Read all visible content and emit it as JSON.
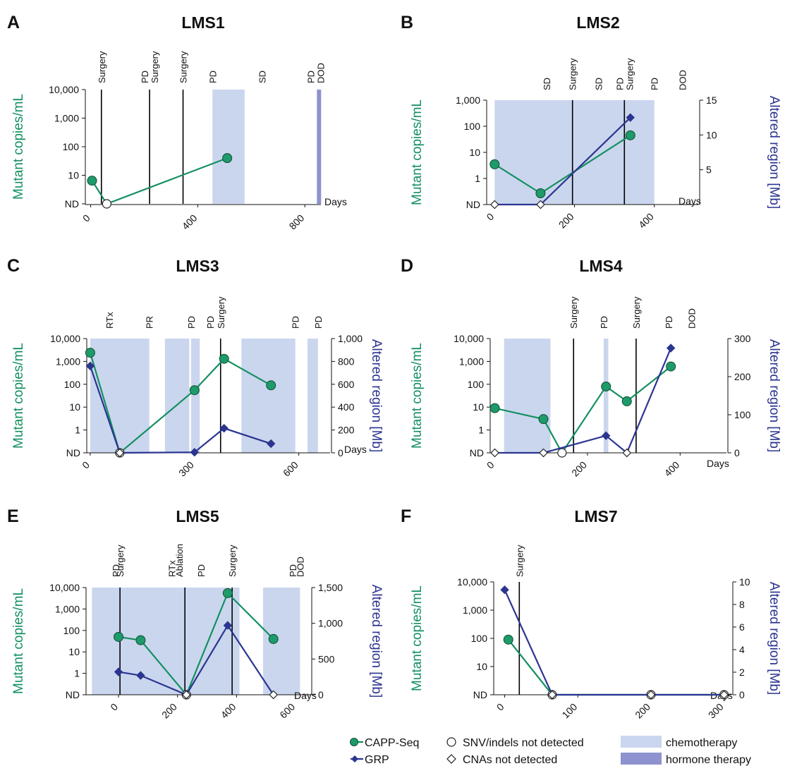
{
  "colors": {
    "capp": "#149060",
    "capp_fill": "#1f9a6a",
    "grp": "#2b3590",
    "chemo": "#cad6ee",
    "hormone": "#8e92cf",
    "axis": "#111111"
  },
  "legend": {
    "capp": "CAPP-Seq",
    "grp": "GRP",
    "snv": "SNV/indels not detected",
    "cna": "CNAs not detected",
    "chemo": "chemotherapy",
    "hormone": "hormone therapy"
  },
  "chart_data": [
    {
      "letter": "A",
      "title": "LMS1",
      "type": "line",
      "xlabel": "Days",
      "ylabel": "Mutant copies/mL",
      "y2label": "",
      "xlim": [
        -20,
        860
      ],
      "xticks": [
        0,
        400,
        800
      ],
      "yticks": [
        "ND",
        "10",
        "100",
        "1,000",
        "10,000"
      ],
      "y2lim": null,
      "y2ticks": [],
      "chemo": [
        [
          455,
          575
        ]
      ],
      "hormone": [
        [
          845,
          860
        ]
      ],
      "events": [
        {
          "day": 40,
          "labels": [
            "Surgery"
          ]
        },
        {
          "day": 220,
          "labels": [
            "PD",
            "Surgery"
          ]
        },
        {
          "day": 345,
          "labels": [
            "Surgery"
          ]
        },
        {
          "day": 455,
          "labels": [
            "PD"
          ]
        },
        {
          "day": 640,
          "labels": [
            "SD"
          ]
        },
        {
          "day": 840,
          "labels": [
            "PD",
            "DOD"
          ]
        }
      ],
      "lines": [
        {
          "day": 40
        },
        {
          "day": 220
        },
        {
          "day": 345
        }
      ],
      "series": [
        {
          "key": "capp",
          "name": "CAPP-Seq",
          "points": [
            {
              "day": 5,
              "value": 6.5,
              "detected": true
            },
            {
              "day": 60,
              "value": 0,
              "detected": false
            },
            {
              "day": 510,
              "value": 40,
              "detected": true
            }
          ]
        }
      ]
    },
    {
      "letter": "B",
      "title": "LMS2",
      "type": "line",
      "xlabel": "Days",
      "ylabel": "Mutant copies/mL",
      "y2label": "Altered region [Mb]",
      "xlim": [
        -20,
        510
      ],
      "xticks": [
        0,
        200,
        400
      ],
      "yticks": [
        "ND",
        "1",
        "10",
        "100",
        "1,000"
      ],
      "y2lim": [
        0,
        15
      ],
      "y2ticks": [
        5,
        10,
        15
      ],
      "chemo": [
        [
          0,
          400
        ]
      ],
      "hormone": [],
      "events": [
        {
          "day": 130,
          "labels": [
            "SD"
          ]
        },
        {
          "day": 195,
          "labels": [
            "Surgery"
          ]
        },
        {
          "day": 260,
          "labels": [
            "SD"
          ]
        },
        {
          "day": 325,
          "labels": [
            "PD",
            "Surgery"
          ]
        },
        {
          "day": 400,
          "labels": [
            "PD"
          ]
        },
        {
          "day": 470,
          "labels": [
            "DOD"
          ]
        }
      ],
      "lines": [
        {
          "day": 195
        },
        {
          "day": 325
        }
      ],
      "series": [
        {
          "key": "capp",
          "name": "CAPP-Seq",
          "points": [
            {
              "day": 0,
              "value": 3.5,
              "detected": true
            },
            {
              "day": 115,
              "value": 0.27,
              "detected": true
            },
            {
              "day": 340,
              "value": 45,
              "detected": true
            }
          ]
        },
        {
          "key": "grp",
          "name": "GRP",
          "points": [
            {
              "day": 0,
              "value": 0,
              "detected": false
            },
            {
              "day": 115,
              "value": 0,
              "detected": false
            },
            {
              "day": 340,
              "value": 12.5,
              "detected": true
            }
          ]
        }
      ]
    },
    {
      "letter": "C",
      "title": "LMS3",
      "type": "line",
      "xlabel": "Days",
      "ylabel": "Mutant copies/mL",
      "y2label": "Altered region [Mb]",
      "xlim": [
        -10,
        690
      ],
      "xticks": [
        0,
        300,
        600
      ],
      "yticks": [
        "ND",
        "1",
        "10",
        "100",
        "1,000",
        "10,000"
      ],
      "y2lim": [
        0,
        1000
      ],
      "y2ticks": [
        0,
        200,
        400,
        600,
        800,
        "1,000"
      ],
      "chemo": [
        [
          0,
          170
        ],
        [
          215,
          285
        ],
        [
          290,
          315
        ],
        [
          435,
          590
        ],
        [
          625,
          655
        ]
      ],
      "hormone": [],
      "events": [
        {
          "day": 55,
          "labels": [
            "RTx"
          ]
        },
        {
          "day": 170,
          "labels": [
            "PR"
          ]
        },
        {
          "day": 290,
          "labels": [
            "PD"
          ]
        },
        {
          "day": 345,
          "labels": [
            "PD"
          ]
        },
        {
          "day": 375,
          "labels": [
            "Surgery"
          ]
        },
        {
          "day": 590,
          "labels": [
            "PD"
          ]
        },
        {
          "day": 655,
          "labels": [
            "PD"
          ]
        }
      ],
      "lines": [
        {
          "day": 375
        }
      ],
      "series": [
        {
          "key": "capp",
          "name": "CAPP-Seq",
          "points": [
            {
              "day": 0,
              "value": 2400,
              "detected": true
            },
            {
              "day": 85,
              "value": 0,
              "detected": false
            },
            {
              "day": 300,
              "value": 55,
              "detected": true
            },
            {
              "day": 385,
              "value": 1300,
              "detected": true
            },
            {
              "day": 520,
              "value": 90,
              "detected": true
            }
          ]
        },
        {
          "key": "grp",
          "name": "GRP",
          "points": [
            {
              "day": 0,
              "value": 760,
              "detected": true
            },
            {
              "day": 85,
              "value": 0,
              "detected": false
            },
            {
              "day": 300,
              "value": 5,
              "detected": true
            },
            {
              "day": 385,
              "value": 215,
              "detected": true
            },
            {
              "day": 520,
              "value": 80,
              "detected": true
            }
          ]
        }
      ]
    },
    {
      "letter": "D",
      "title": "LMS4",
      "type": "line",
      "xlabel": "Days",
      "ylabel": "Mutant copies/mL",
      "y2label": "Altered region [Mb]",
      "xlim": [
        -10,
        500
      ],
      "xticks": [
        0,
        200,
        400
      ],
      "yticks": [
        "ND",
        "1",
        "10",
        "100",
        "1,000",
        "10,000"
      ],
      "y2lim": [
        0,
        300
      ],
      "y2ticks": [
        0,
        100,
        200,
        300
      ],
      "chemo": [
        [
          20,
          120
        ],
        [
          235,
          245
        ]
      ],
      "hormone": [],
      "events": [
        {
          "day": 170,
          "labels": [
            "Surgery"
          ]
        },
        {
          "day": 235,
          "labels": [
            "PD"
          ]
        },
        {
          "day": 305,
          "labels": [
            "Surgery"
          ]
        },
        {
          "day": 375,
          "labels": [
            "PD"
          ]
        },
        {
          "day": 425,
          "labels": [
            "DOD"
          ]
        }
      ],
      "lines": [
        {
          "day": 170
        },
        {
          "day": 305
        }
      ],
      "series": [
        {
          "key": "capp",
          "name": "CAPP-Seq",
          "points": [
            {
              "day": 0,
              "value": 9,
              "detected": true
            },
            {
              "day": 105,
              "value": 3,
              "detected": true
            },
            {
              "day": 145,
              "value": 0,
              "detected": false
            },
            {
              "day": 240,
              "value": 80,
              "detected": true
            },
            {
              "day": 285,
              "value": 18,
              "detected": true
            },
            {
              "day": 380,
              "value": 600,
              "detected": true
            }
          ]
        },
        {
          "key": "grp",
          "name": "GRP",
          "points": [
            {
              "day": 0,
              "value": 0,
              "detected": false
            },
            {
              "day": 105,
              "value": 0,
              "detected": false
            },
            {
              "day": 240,
              "value": 45,
              "detected": true
            },
            {
              "day": 285,
              "value": 0,
              "detected": false
            },
            {
              "day": 380,
              "value": 275,
              "detected": true
            }
          ]
        }
      ]
    },
    {
      "letter": "E",
      "title": "LMS5",
      "type": "line",
      "xlabel": "Days",
      "ylabel": "Mutant copies/mL",
      "y2label": "Altered region [Mb]",
      "xlim": [
        -110,
        650
      ],
      "xticks": [
        0,
        200,
        400,
        600
      ],
      "yticks": [
        "ND",
        "1",
        "10",
        "100",
        "1,000",
        "10,000"
      ],
      "y2lim": [
        0,
        1500
      ],
      "y2ticks": [
        0,
        500,
        "1,000",
        "1,500"
      ],
      "chemo": [
        [
          -90,
          0
        ],
        [
          0,
          410
        ],
        [
          490,
          615
        ]
      ],
      "hormone": [],
      "events": [
        {
          "day": -10,
          "labels": [
            "PD"
          ]
        },
        {
          "day": 5,
          "labels": [
            "Surgery"
          ]
        },
        {
          "day": 180,
          "labels": [
            "RTx"
          ]
        },
        {
          "day": 205,
          "labels": [
            "Ablation"
          ]
        },
        {
          "day": 280,
          "labels": [
            "PD"
          ]
        },
        {
          "day": 385,
          "labels": [
            "Surgery"
          ]
        },
        {
          "day": 590,
          "labels": [
            "PD"
          ]
        },
        {
          "day": 615,
          "labels": [
            "DOD"
          ]
        }
      ],
      "lines": [
        {
          "day": 5
        },
        {
          "day": 225
        },
        {
          "day": 385
        }
      ],
      "series": [
        {
          "key": "capp",
          "name": "CAPP-Seq",
          "points": [
            {
              "day": 0,
              "value": 50,
              "detected": true
            },
            {
              "day": 75,
              "value": 35,
              "detected": true
            },
            {
              "day": 230,
              "value": 0,
              "detected": false
            },
            {
              "day": 370,
              "value": 5500,
              "detected": true
            },
            {
              "day": 525,
              "value": 40,
              "detected": true
            }
          ]
        },
        {
          "key": "grp",
          "name": "GRP",
          "points": [
            {
              "day": 0,
              "value": 320,
              "detected": true
            },
            {
              "day": 75,
              "value": 270,
              "detected": true
            },
            {
              "day": 230,
              "value": 0,
              "detected": false
            },
            {
              "day": 370,
              "value": 970,
              "detected": true
            },
            {
              "day": 525,
              "value": 0,
              "detected": false
            }
          ]
        }
      ]
    },
    {
      "letter": "F",
      "title": "LMS7",
      "type": "line",
      "xlabel": "Days",
      "ylabel": "Mutant copies/mL",
      "y2label": "Altered region [Mb]",
      "xlim": [
        -15,
        310
      ],
      "xticks": [
        0,
        100,
        200,
        300
      ],
      "yticks": [
        "ND",
        "10",
        "100",
        "1,000",
        "10,000"
      ],
      "y2lim": [
        0,
        10
      ],
      "y2ticks": [
        0,
        2,
        4,
        6,
        8,
        10
      ],
      "chemo": [],
      "hormone": [],
      "events": [
        {
          "day": 20,
          "labels": [
            "Surgery"
          ]
        }
      ],
      "lines": [
        {
          "day": 20
        }
      ],
      "series": [
        {
          "key": "capp",
          "name": "CAPP-Seq",
          "points": [
            {
              "day": 5,
              "value": 90,
              "detected": true
            },
            {
              "day": 65,
              "value": 0,
              "detected": false
            },
            {
              "day": 200,
              "value": 0,
              "detected": false
            },
            {
              "day": 300,
              "value": 0,
              "detected": false
            }
          ]
        },
        {
          "key": "grp",
          "name": "GRP",
          "points": [
            {
              "day": 0,
              "value": 9.3,
              "detected": true
            },
            {
              "day": 65,
              "value": 0,
              "detected": false
            },
            {
              "day": 200,
              "value": 0,
              "detected": false
            },
            {
              "day": 300,
              "value": 0,
              "detected": false
            }
          ]
        }
      ]
    }
  ]
}
